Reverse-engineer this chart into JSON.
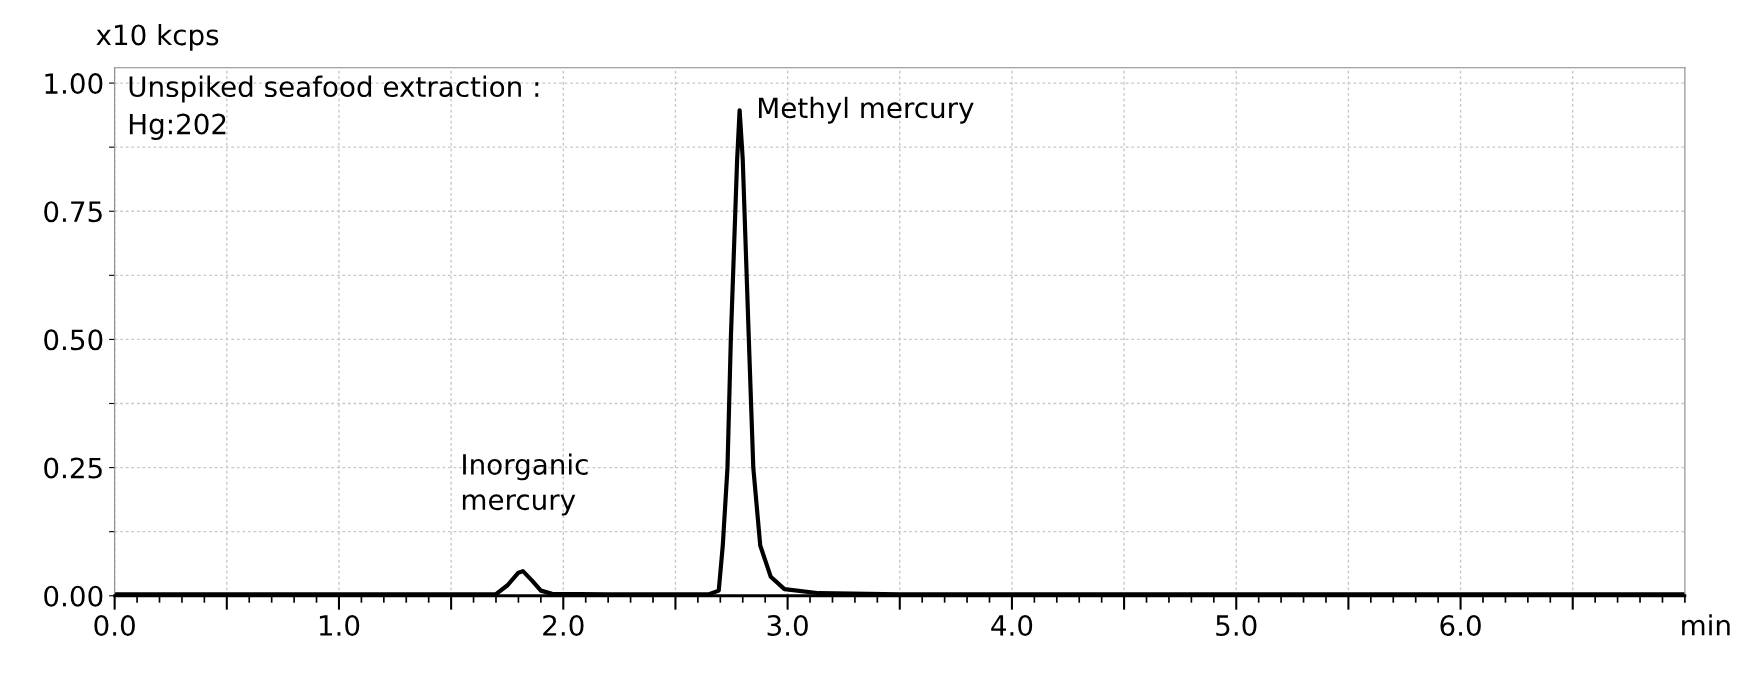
{
  "chart_data": {
    "type": "line",
    "xlabel": "min",
    "ylabel": "x10 kcps",
    "series": [
      {
        "color": "#000000",
        "x": [
          0.0,
          0.5,
          1.0,
          1.5,
          1.7,
          1.75,
          1.8,
          1.82,
          1.86,
          1.9,
          1.95,
          2.2,
          2.5,
          2.65,
          2.693,
          2.711,
          2.732,
          2.747,
          2.775,
          2.786,
          2.8,
          2.827,
          2.847,
          2.878,
          2.925,
          2.986,
          3.14,
          3.5,
          4.0,
          5.0,
          6.0,
          7.0
        ],
        "values": [
          0.003,
          0.003,
          0.003,
          0.003,
          0.003,
          0.02,
          0.045,
          0.048,
          0.03,
          0.01,
          0.004,
          0.003,
          0.003,
          0.003,
          0.01,
          0.098,
          0.25,
          0.502,
          0.851,
          0.947,
          0.851,
          0.502,
          0.25,
          0.098,
          0.037,
          0.013,
          0.005,
          0.003,
          0.003,
          0.003,
          0.003,
          0.003
        ]
      }
    ],
    "xlim": [
      0,
      7.0
    ],
    "ylim": [
      0,
      1.03
    ],
    "xticks": [
      {
        "value": 0,
        "label": "0.0"
      },
      {
        "value": 0.5,
        "label": null
      },
      {
        "value": 1,
        "label": "1.0"
      },
      {
        "value": 1.5,
        "label": null
      },
      {
        "value": 2,
        "label": "2.0"
      },
      {
        "value": 2.5,
        "label": null
      },
      {
        "value": 3,
        "label": "3.0"
      },
      {
        "value": 3.5,
        "label": null
      },
      {
        "value": 4,
        "label": "4.0"
      },
      {
        "value": 4.5,
        "label": null
      },
      {
        "value": 5,
        "label": "5.0"
      },
      {
        "value": 5.5,
        "label": null
      },
      {
        "value": 6,
        "label": "6.0"
      },
      {
        "value": 6.5,
        "label": null
      }
    ],
    "yticks": [
      {
        "value": 0,
        "label": "0.00"
      },
      {
        "value": 0.125,
        "label": null
      },
      {
        "value": 0.25,
        "label": "0.25"
      },
      {
        "value": 0.375,
        "label": null
      },
      {
        "value": 0.5,
        "label": "0.50"
      },
      {
        "value": 0.625,
        "label": null
      },
      {
        "value": 0.75,
        "label": "0.75"
      },
      {
        "value": 0.875,
        "label": null
      },
      {
        "value": 1.0,
        "label": "1.00"
      }
    ],
    "grid": true,
    "marker": "none",
    "line_style": "solid",
    "legend": false,
    "annotations": [
      "Unspiked seafood extraction :\nHg:202",
      {
        "text": "Methyl mercury",
        "x": 2.786,
        "y": 0.947
      },
      {
        "text": "Inorganic\nmercury",
        "x": 1.82,
        "y": 0.048
      }
    ]
  }
}
